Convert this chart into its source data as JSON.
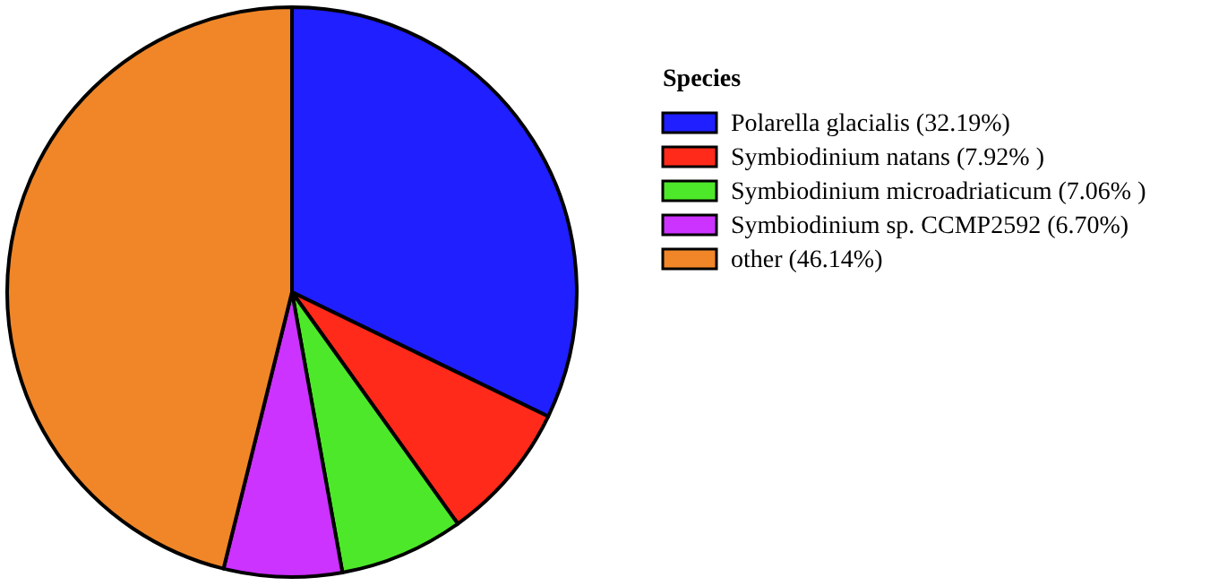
{
  "chart_data": {
    "type": "pie",
    "legend_title": "Species",
    "legend": "right",
    "categories": [
      "Polarella glacialis (32.19%)",
      "Symbiodinium natans (7.92% )",
      "Symbiodinium microadriaticum (7.06% )",
      "Symbiodinium sp. CCMP2592 (6.70%)",
      "other (46.14%)"
    ],
    "values": [
      32.19,
      7.92,
      7.06,
      6.7,
      46.14
    ],
    "colors": [
      "#1f1fff",
      "#ff2a1a",
      "#4de82a",
      "#cc33ff",
      "#f08628"
    ]
  }
}
